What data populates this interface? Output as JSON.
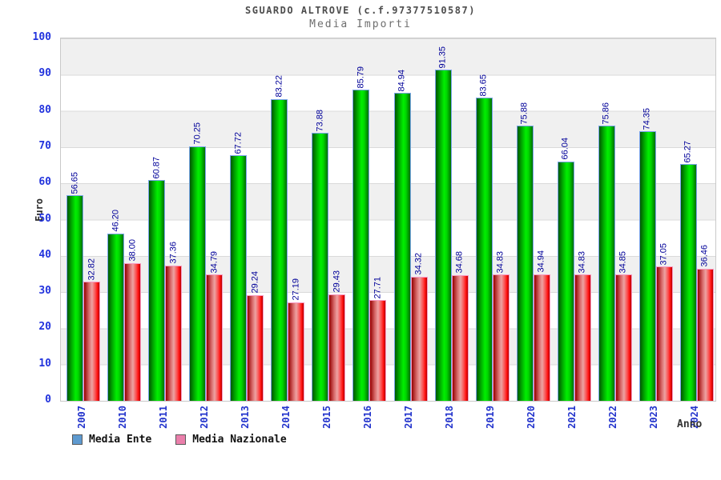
{
  "header": {
    "title": "SGUARDO ALTROVE (c.f.97377510587)",
    "subtitle": "Media Importi"
  },
  "chart_data": {
    "type": "bar",
    "title": "SGUARDO ALTROVE (c.f.97377510587)",
    "subtitle": "Media Importi",
    "xlabel": "Anno",
    "ylabel": "Euro",
    "ylim": [
      0,
      100
    ],
    "ytick_step": 10,
    "grid": "horizontal-bands-alternating",
    "legend_position": "bottom-left",
    "categories": [
      "2007",
      "2010",
      "2011",
      "2012",
      "2013",
      "2014",
      "2015",
      "2016",
      "2017",
      "2018",
      "2019",
      "2020",
      "2021",
      "2022",
      "2023",
      "2024"
    ],
    "series": [
      {
        "name": "Media Ente",
        "legend_color": "#5e9ad0",
        "bar_color": "#00e000",
        "values": [
          56.65,
          46.2,
          60.87,
          70.25,
          67.72,
          83.22,
          73.88,
          85.79,
          84.94,
          91.35,
          83.65,
          75.88,
          66.04,
          75.86,
          74.35,
          65.27
        ]
      },
      {
        "name": "Media Nazionale",
        "legend_color": "#ea7fab",
        "bar_color": "#ff2020",
        "values": [
          32.82,
          38.0,
          37.36,
          34.79,
          29.24,
          27.19,
          29.43,
          27.71,
          34.32,
          34.68,
          34.83,
          34.94,
          34.83,
          34.85,
          37.05,
          36.46
        ]
      }
    ]
  },
  "axes": {
    "y_title": "Euro",
    "x_title": "Anno",
    "y_ticks": [
      "0",
      "10",
      "20",
      "30",
      "40",
      "50",
      "60",
      "70",
      "80",
      "90",
      "100"
    ]
  },
  "legend": {
    "items": [
      {
        "label": "Media Ente",
        "color": "#5e9ad0"
      },
      {
        "label": "Media Nazionale",
        "color": "#ea7fab"
      }
    ]
  },
  "palette": {
    "tick_label_blue": "#2233cc",
    "value_label_navy": "#000099",
    "band_gray": "#f0f0f0",
    "plot_border": "#c9c9c9"
  }
}
